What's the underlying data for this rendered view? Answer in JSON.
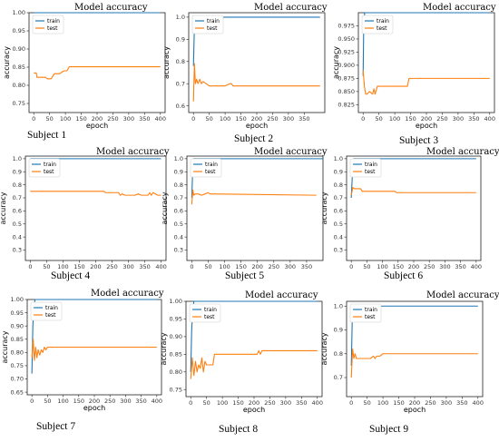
{
  "colors": {
    "train": "#1f77b4",
    "test": "#ff7f0e"
  },
  "chart_data": [
    {
      "type": "line",
      "title": "Model accuracy",
      "subject_label": "Subject 1",
      "xlabel": "epoch",
      "ylabel": "accuracy",
      "xlim": [
        -15,
        415
      ],
      "ylim": [
        0.725,
        1.0
      ],
      "xticks": [
        0,
        50,
        100,
        150,
        200,
        250,
        300,
        350,
        400
      ],
      "yticks": [
        0.75,
        0.8,
        0.85,
        0.9,
        0.95,
        1.0
      ],
      "ytick_labels": [
        "0.75",
        "0.80",
        "0.85",
        "0.90",
        "0.95",
        "1.00"
      ],
      "legend": "top-left",
      "series": [
        {
          "name": "train",
          "x": [
            0,
            400
          ],
          "y": [
            1.0,
            1.0
          ]
        },
        {
          "name": "test",
          "x": [
            0,
            8,
            10,
            20,
            38,
            42,
            55,
            65,
            72,
            82,
            95,
            105,
            112,
            400
          ],
          "y": [
            0.834,
            0.834,
            0.822,
            0.822,
            0.822,
            0.818,
            0.818,
            0.832,
            0.832,
            0.832,
            0.84,
            0.84,
            0.851,
            0.851
          ]
        }
      ]
    },
    {
      "type": "line",
      "title": "Model accuracy",
      "subject_label": "Subject 2",
      "xlabel": "epoch",
      "ylabel": "accuracy",
      "xlim": [
        -15,
        415
      ],
      "ylim": [
        0.57,
        1.02
      ],
      "xticks": [
        0,
        50,
        100,
        150,
        200,
        250,
        300,
        350
      ],
      "yticks": [
        0.6,
        0.7,
        0.8,
        0.9,
        1.0
      ],
      "ytick_labels": [
        "0.6",
        "0.7",
        "0.8",
        "0.9",
        "1.0"
      ],
      "legend": "top-left",
      "series": [
        {
          "name": "train",
          "x": [
            0,
            3,
            5,
            8,
            400
          ],
          "y": [
            0.78,
            0.96,
            0.99,
            1.0,
            1.0
          ]
        },
        {
          "name": "test",
          "x": [
            0,
            3,
            6,
            10,
            14,
            20,
            25,
            30,
            40,
            50,
            60,
            80,
            100,
            115,
            120,
            125,
            400
          ],
          "y": [
            0.62,
            0.79,
            0.7,
            0.72,
            0.7,
            0.72,
            0.7,
            0.71,
            0.7,
            0.69,
            0.69,
            0.69,
            0.69,
            0.7,
            0.7,
            0.69,
            0.69
          ]
        }
      ]
    },
    {
      "type": "line",
      "title": "Model accuracy",
      "subject_label": "Subject 3",
      "xlabel": "epoch",
      "ylabel": "accuracy",
      "xlim": [
        -15,
        415
      ],
      "ylim": [
        0.81,
        1.0
      ],
      "xticks": [
        0,
        50,
        100,
        150,
        200,
        250,
        300,
        350,
        400
      ],
      "yticks": [
        0.825,
        0.85,
        0.875,
        0.9,
        0.925,
        0.95,
        0.975
      ],
      "ytick_labels": [
        "0.825",
        "0.850",
        "0.875",
        "0.900",
        "0.925",
        "0.950",
        "0.975"
      ],
      "legend": "top-left",
      "series": [
        {
          "name": "train",
          "x": [
            0,
            2,
            5,
            400
          ],
          "y": [
            0.88,
            0.98,
            1.0,
            1.0
          ]
        },
        {
          "name": "test",
          "x": [
            0,
            4,
            8,
            12,
            20,
            30,
            34,
            38,
            45,
            140,
            145,
            400
          ],
          "y": [
            0.89,
            0.86,
            0.845,
            0.845,
            0.85,
            0.845,
            0.855,
            0.845,
            0.86,
            0.86,
            0.875,
            0.875
          ]
        }
      ]
    },
    {
      "type": "line",
      "title": "Model accuracy",
      "subject_label": "Subject 4",
      "xlabel": "",
      "ylabel": "accuracy",
      "xlim": [
        -15,
        415
      ],
      "ylim": [
        0.22,
        1.02
      ],
      "xticks": [
        0,
        50,
        100,
        150,
        200,
        250,
        300,
        350,
        400
      ],
      "yticks": [
        0.3,
        0.4,
        0.5,
        0.6,
        0.7,
        0.8,
        0.9,
        1.0
      ],
      "ytick_labels": [
        "0.3",
        "0.4",
        "0.5",
        "0.6",
        "0.7",
        "0.8",
        "0.9",
        "1.0"
      ],
      "legend": "top-left",
      "series": [
        {
          "name": "train",
          "x": [
            0,
            400
          ],
          "y": [
            1.0,
            1.0
          ]
        },
        {
          "name": "test",
          "x": [
            0,
            225,
            230,
            270,
            275,
            280,
            290,
            300,
            310,
            320,
            330,
            340,
            350,
            355,
            360,
            365,
            370,
            375,
            390,
            400
          ],
          "y": [
            0.75,
            0.75,
            0.74,
            0.74,
            0.72,
            0.73,
            0.72,
            0.72,
            0.72,
            0.72,
            0.73,
            0.72,
            0.72,
            0.72,
            0.72,
            0.74,
            0.72,
            0.74,
            0.72,
            0.72
          ]
        }
      ]
    },
    {
      "type": "line",
      "title": "Model accuracy",
      "subject_label": "Subject 5",
      "xlabel": "",
      "ylabel": "accuracy",
      "xlim": [
        -15,
        400
      ],
      "ylim": [
        0.22,
        1.02
      ],
      "xticks": [
        0,
        50,
        100,
        150,
        200,
        250,
        300,
        350
      ],
      "yticks": [
        0.3,
        0.4,
        0.5,
        0.6,
        0.7,
        0.8,
        0.9,
        1.0
      ],
      "ytick_labels": [
        "0.3",
        "0.4",
        "0.5",
        "0.6",
        "0.7",
        "0.8",
        "0.9",
        "1.0"
      ],
      "legend": "top-left",
      "series": [
        {
          "name": "train",
          "x": [
            0,
            3,
            6,
            400
          ],
          "y": [
            0.7,
            0.95,
            1.0,
            1.0
          ]
        },
        {
          "name": "test",
          "x": [
            0,
            3,
            6,
            10,
            20,
            30,
            40,
            50,
            55,
            60,
            380
          ],
          "y": [
            0.65,
            0.76,
            0.72,
            0.73,
            0.73,
            0.72,
            0.73,
            0.74,
            0.73,
            0.73,
            0.72
          ]
        }
      ]
    },
    {
      "type": "line",
      "title": "Model accuracy",
      "subject_label": "Subject 6",
      "xlabel": "",
      "ylabel": "accuracy",
      "xlim": [
        -15,
        415
      ],
      "ylim": [
        0.22,
        1.02
      ],
      "xticks": [
        0,
        50,
        100,
        150,
        200,
        250,
        300,
        350,
        400
      ],
      "yticks": [
        0.3,
        0.4,
        0.5,
        0.6,
        0.7,
        0.8,
        0.9,
        1.0
      ],
      "ytick_labels": [
        "0.3",
        "0.4",
        "0.5",
        "0.6",
        "0.7",
        "0.8",
        "0.9",
        "1.0"
      ],
      "legend": "top-left",
      "series": [
        {
          "name": "train",
          "x": [
            0,
            4,
            8,
            400
          ],
          "y": [
            0.7,
            0.9,
            1.0,
            1.0
          ]
        },
        {
          "name": "test",
          "x": [
            0,
            5,
            10,
            30,
            35,
            140,
            145,
            400
          ],
          "y": [
            0.72,
            0.78,
            0.77,
            0.77,
            0.75,
            0.75,
            0.74,
            0.74
          ]
        }
      ]
    },
    {
      "type": "line",
      "title": "Model accuracy",
      "subject_label": "Subject 7",
      "xlabel": "epoch",
      "ylabel": "accuracy",
      "xlim": [
        -15,
        415
      ],
      "ylim": [
        0.64,
        1.0
      ],
      "xticks": [
        0,
        50,
        100,
        150,
        200,
        250,
        300,
        350,
        400
      ],
      "yticks": [
        0.65,
        0.7,
        0.75,
        0.8,
        0.85,
        0.9,
        0.95,
        1.0
      ],
      "ytick_labels": [
        "0.65",
        "0.70",
        "0.75",
        "0.80",
        "0.85",
        "0.90",
        "0.95",
        "1.00"
      ],
      "legend": "top-left",
      "series": [
        {
          "name": "train",
          "x": [
            0,
            3,
            6,
            10,
            400
          ],
          "y": [
            0.72,
            0.9,
            0.97,
            1.0,
            1.0
          ]
        },
        {
          "name": "test",
          "x": [
            0,
            4,
            8,
            12,
            16,
            20,
            25,
            30,
            35,
            40,
            45,
            50,
            400
          ],
          "y": [
            0.78,
            0.85,
            0.77,
            0.82,
            0.78,
            0.81,
            0.79,
            0.81,
            0.8,
            0.82,
            0.81,
            0.82,
            0.82
          ]
        }
      ]
    },
    {
      "type": "line",
      "title": "Model accuracy",
      "subject_label": "Subject 8",
      "xlabel": "epoch",
      "ylabel": "accuracy",
      "xlim": [
        -15,
        415
      ],
      "ylim": [
        0.73,
        1.0
      ],
      "xticks": [
        0,
        50,
        100,
        150,
        200,
        250,
        300,
        350,
        400
      ],
      "yticks": [
        0.75,
        0.8,
        0.85,
        0.9,
        0.95,
        1.0
      ],
      "ytick_labels": [
        "0.75",
        "0.80",
        "0.85",
        "0.90",
        "0.95",
        "1.00"
      ],
      "legend": "top-left",
      "series": [
        {
          "name": "train",
          "x": [
            0,
            3,
            6,
            10,
            400
          ],
          "y": [
            0.8,
            0.92,
            0.97,
            1.0,
            1.0
          ]
        },
        {
          "name": "test",
          "x": [
            0,
            5,
            10,
            15,
            20,
            25,
            30,
            35,
            40,
            45,
            50,
            55,
            70,
            75,
            210,
            215,
            220,
            225,
            400
          ],
          "y": [
            0.78,
            0.84,
            0.79,
            0.83,
            0.8,
            0.82,
            0.81,
            0.84,
            0.8,
            0.83,
            0.82,
            0.82,
            0.82,
            0.85,
            0.85,
            0.86,
            0.85,
            0.86,
            0.86
          ]
        }
      ]
    },
    {
      "type": "line",
      "title": "Model accuracy",
      "subject_label": "Subject 9",
      "xlabel": "epoch",
      "ylabel": "accuracy",
      "xlim": [
        -15,
        415
      ],
      "ylim": [
        0.62,
        1.02
      ],
      "xticks": [
        0,
        50,
        100,
        150,
        200,
        250,
        300,
        350,
        400
      ],
      "yticks": [
        0.7,
        0.8,
        0.9,
        1.0
      ],
      "ytick_labels": [
        "0.7",
        "0.8",
        "0.9",
        "1.0"
      ],
      "legend": "top-left",
      "series": [
        {
          "name": "train",
          "x": [
            0,
            3,
            6,
            400
          ],
          "y": [
            0.75,
            0.95,
            1.0,
            1.0
          ]
        },
        {
          "name": "test",
          "x": [
            0,
            4,
            8,
            12,
            16,
            20,
            25,
            30,
            60,
            70,
            75,
            80,
            90,
            100,
            400
          ],
          "y": [
            0.7,
            0.82,
            0.78,
            0.8,
            0.78,
            0.78,
            0.78,
            0.78,
            0.78,
            0.79,
            0.78,
            0.79,
            0.79,
            0.8,
            0.8
          ]
        }
      ]
    }
  ]
}
